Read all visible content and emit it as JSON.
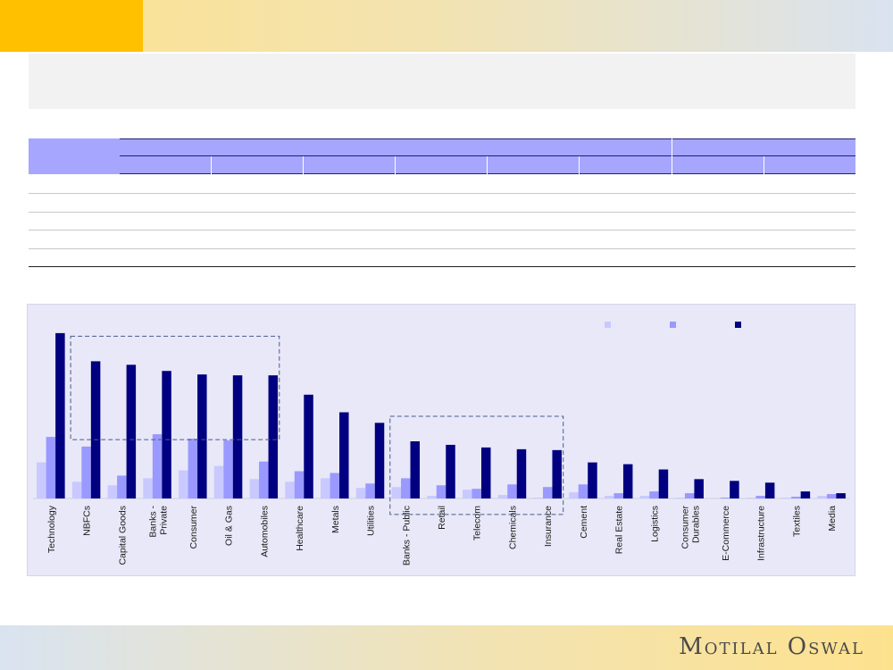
{
  "brand": {
    "logo_text": "Motilal Oswal"
  },
  "colors": {
    "series1": "#c9c9ff",
    "series2": "#9999ff",
    "series3": "#000080",
    "accent": "#ffc000"
  },
  "chart_data": {
    "type": "bar",
    "categories": [
      "Technology",
      "NBFCs",
      "Capital Goods",
      "Banks - Private",
      "Consumer",
      "Oil & Gas",
      "Automobiles",
      "Healthcare",
      "Metals",
      "Utilities",
      "Banks - Public",
      "Retail",
      "Telecom",
      "Chemicals",
      "Insurance",
      "Cement",
      "Real Estate",
      "Logistics",
      "Consumer Durables",
      "E-Commerce",
      "Infrastructure",
      "Textiles",
      "Media"
    ],
    "series": [
      {
        "values": [
          41,
          19,
          15,
          23,
          32,
          37,
          22,
          19,
          23,
          12,
          13,
          3,
          10,
          4,
          1,
          7,
          3,
          3,
          1,
          0.5,
          1,
          1,
          3
        ]
      },
      {
        "values": [
          70,
          59,
          26,
          73,
          68,
          66,
          42,
          31,
          29,
          17,
          23,
          15,
          11,
          16,
          13,
          16,
          6,
          8,
          6,
          1,
          3,
          2,
          5
        ]
      },
      {
        "values": [
          188,
          156,
          152,
          145,
          141,
          140,
          140,
          118,
          98,
          86,
          65,
          61,
          58,
          56,
          55,
          41,
          39,
          33,
          22,
          20,
          18,
          8,
          6
        ]
      }
    ],
    "ylim": [
      0,
      195
    ],
    "legend": "top-right",
    "highlight_groups": [
      {
        "from": 1,
        "to": 6
      },
      {
        "from": 10,
        "to": 14
      }
    ]
  }
}
